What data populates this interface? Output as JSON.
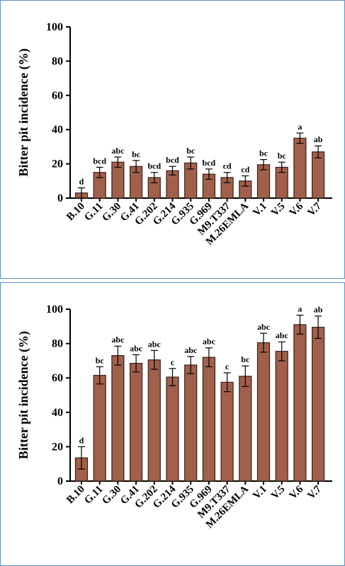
{
  "chart_data": [
    {
      "type": "bar",
      "ylabel": "Bitter pit incidence (%)",
      "ylim": [
        0,
        100
      ],
      "yticks": [
        0,
        20,
        40,
        60,
        80,
        100
      ],
      "bar_color": "#a0604b",
      "categories": [
        "B.10",
        "G.11",
        "G.30",
        "G.41",
        "G.202",
        "G.214",
        "G.935",
        "G.969",
        "M9.T337",
        "M.26EMLA",
        "V.1",
        "V.5",
        "V.6",
        "V.7"
      ],
      "values": [
        3,
        15,
        21,
        18.5,
        12,
        16,
        20.5,
        14,
        12,
        10,
        19.5,
        18,
        35,
        27
      ],
      "errors": [
        3,
        3,
        3,
        3.5,
        3,
        2.5,
        3.5,
        3,
        3,
        3,
        3,
        3,
        3,
        3.5
      ],
      "significance": [
        "d",
        "bcd",
        "abc",
        "bc",
        "bcd",
        "bcd",
        "bc",
        "bcd",
        "cd",
        "cd",
        "bc",
        "bc",
        "a",
        "ab"
      ]
    },
    {
      "type": "bar",
      "ylabel": "Bitter pit incidence (%)",
      "ylim": [
        0,
        100
      ],
      "yticks": [
        0,
        20,
        40,
        60,
        80,
        100
      ],
      "bar_color": "#a0604b",
      "categories": [
        "B.10",
        "G.11",
        "G.30",
        "G.41",
        "G.202",
        "G.214",
        "G.935",
        "G.969",
        "M9.T337",
        "M.26EMLA",
        "V.1",
        "V.5",
        "V.6",
        "V.7"
      ],
      "values": [
        13.5,
        61.5,
        73,
        68.5,
        70.5,
        60.5,
        67.5,
        72,
        57.5,
        61,
        80.5,
        75.5,
        91,
        89.5
      ],
      "errors": [
        6.5,
        5,
        5.5,
        5,
        5.5,
        5,
        5,
        5.5,
        5.5,
        6,
        5.5,
        5.5,
        5.5,
        6.5
      ],
      "significance": [
        "d",
        "bc",
        "abc",
        "abc",
        "abc",
        "c",
        "abc",
        "abc",
        "c",
        "bc",
        "abc",
        "abc",
        "a",
        "ab"
      ]
    }
  ]
}
